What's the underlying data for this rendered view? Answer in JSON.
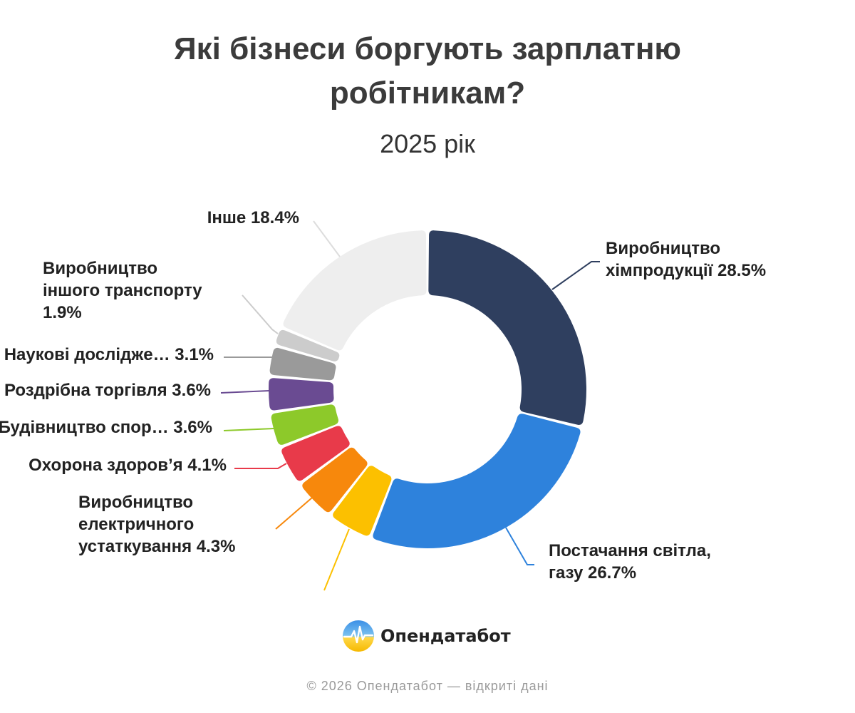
{
  "title_lines": [
    "Які бізнеси боргують зарплатню",
    "робітникам?"
  ],
  "subtitle": "2025 рік",
  "brand": {
    "name": "Опендатабот"
  },
  "footer": "© 2026 Опендатабот — відкриті дані",
  "chart_data": {
    "type": "pie",
    "variant": "donut",
    "title": "Які бізнеси боргують зарплатню робітникам?",
    "subtitle": "2025 рік",
    "slices": [
      {
        "value": 28.5,
        "color": "#2f3f5f",
        "label_lines": [
          "Виробництво",
          "хімпродукції 28.5%"
        ]
      },
      {
        "value": 26.7,
        "color": "#2e82dc",
        "label_lines": [
          "Постачання світла,",
          "газу 26.7%"
        ]
      },
      {
        "value": 4.6,
        "color": "#fcc000",
        "label_lines": []
      },
      {
        "value": 4.3,
        "color": "#f7880c",
        "label_lines": [
          "Виробництво",
          "електричного",
          "устаткування 4.3%"
        ]
      },
      {
        "value": 4.1,
        "color": "#e83a4a",
        "label_lines": [
          "Охорона здоров’я 4.1%"
        ]
      },
      {
        "value": 3.6,
        "color": "#8dc92a",
        "label_lines": [
          "Будівництво спор… 3.6%"
        ]
      },
      {
        "value": 3.6,
        "color": "#6a4b92",
        "label_lines": [
          "Роздрібна торгівля 3.6%"
        ]
      },
      {
        "value": 3.1,
        "color": "#9a9a9a",
        "label_lines": [
          "Наукові досліджe… 3.1%"
        ]
      },
      {
        "value": 1.9,
        "color": "#cccccc",
        "label_lines": [
          "Виробництво",
          "іншого транспорту",
          "1.9%"
        ]
      },
      {
        "value": 18.4,
        "color": "#eeeeee",
        "label_lines": [
          "Інше 18.4%"
        ]
      }
    ]
  }
}
